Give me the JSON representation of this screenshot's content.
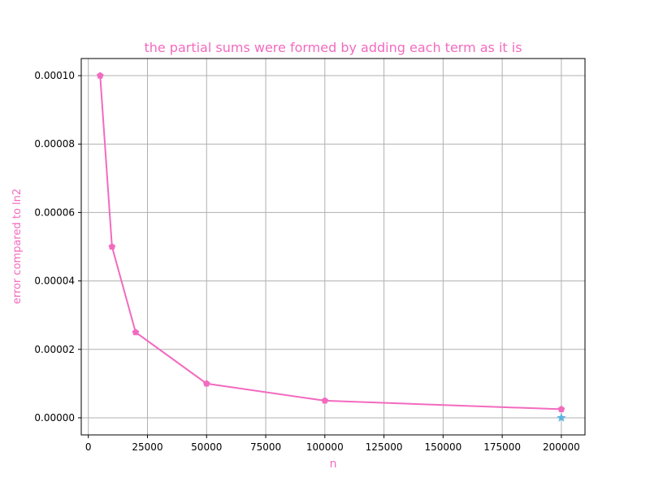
{
  "chart_data": {
    "type": "line",
    "title": "the partial sums were formed by adding each term as it is",
    "xlabel": "n",
    "ylabel": "error compared to ln2",
    "xlim": [
      -3000,
      210000
    ],
    "ylim": [
      -5e-06,
      0.000105
    ],
    "x_ticks": [
      0,
      25000,
      50000,
      75000,
      100000,
      125000,
      150000,
      175000,
      200000
    ],
    "x_tick_labels": [
      "0",
      "25000",
      "50000",
      "75000",
      "100000",
      "125000",
      "150000",
      "175000",
      "200000"
    ],
    "y_ticks": [
      0,
      2e-05,
      4e-05,
      6e-05,
      8e-05,
      0.0001
    ],
    "y_tick_labels": [
      "0.00000",
      "0.00002",
      "0.00004",
      "0.00006",
      "0.00008",
      "0.00010"
    ],
    "grid": true,
    "series": [
      {
        "marker": "pentagon",
        "color": "#f26bbf",
        "x": [
          5000,
          10000,
          20000,
          50000,
          100000,
          200000
        ],
        "y": [
          0.0001,
          5e-05,
          2.5e-05,
          1e-05,
          5e-06,
          2.5e-06
        ]
      },
      {
        "marker": "star",
        "color": "#5ab4e0",
        "x": [
          200000
        ],
        "y": [
          0.0
        ]
      }
    ],
    "colors": {
      "title": "#f26bbf",
      "axis_label": "#f26bbf",
      "grid": "#b0b0b0",
      "tick_text": "#000000"
    }
  }
}
